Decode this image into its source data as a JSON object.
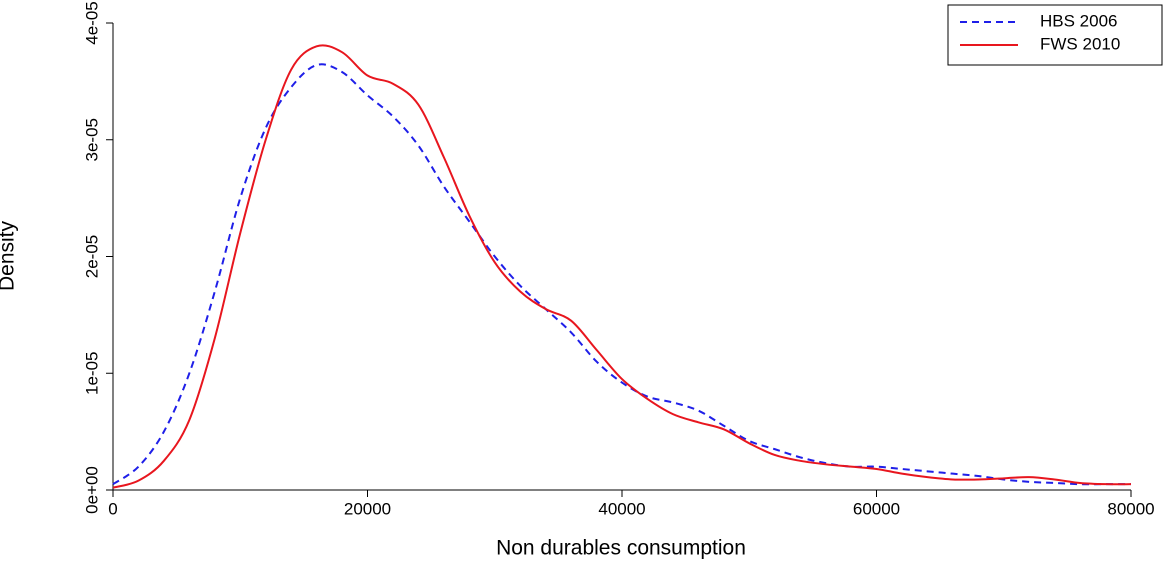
{
  "chart_data": {
    "type": "line",
    "x_label": "Non durables consumption",
    "y_label": "Density",
    "x": [
      0,
      2000,
      4000,
      6000,
      8000,
      10000,
      12000,
      14000,
      16000,
      18000,
      20000,
      22000,
      24000,
      26000,
      28000,
      30000,
      32000,
      34000,
      36000,
      38000,
      40000,
      42000,
      44000,
      46000,
      48000,
      50000,
      52000,
      54000,
      56000,
      58000,
      60000,
      62000,
      64000,
      66000,
      68000,
      70000,
      72000,
      74000,
      76000,
      78000,
      80000
    ],
    "series": [
      {
        "name": "HBS 2006",
        "color": "#1f1fe8",
        "dash": "dashed",
        "values": [
          5e-07,
          2e-06,
          5e-06,
          1e-05,
          1.7e-05,
          2.5e-05,
          3.1e-05,
          3.45e-05,
          3.64e-05,
          3.58e-05,
          3.38e-05,
          3.2e-05,
          2.95e-05,
          2.6e-05,
          2.3e-05,
          2e-05,
          1.75e-05,
          1.55e-05,
          1.35e-05,
          1.1e-05,
          9.2e-06,
          8e-06,
          7.5e-06,
          6.8e-06,
          5.5e-06,
          4.2e-06,
          3.5e-06,
          2.8e-06,
          2.3e-06,
          2e-06,
          2e-06,
          1.8e-06,
          1.6e-06,
          1.4e-06,
          1.2e-06,
          9e-07,
          7e-07,
          6e-07,
          5e-07,
          5e-07,
          5e-07
        ]
      },
      {
        "name": "FWS 2010",
        "color": "#e8161e",
        "dash": "solid",
        "values": [
          2e-07,
          8e-07,
          2.5e-06,
          6e-06,
          1.3e-05,
          2.2e-05,
          3e-05,
          3.6e-05,
          3.8e-05,
          3.75e-05,
          3.55e-05,
          3.48e-05,
          3.3e-05,
          2.85e-05,
          2.35e-05,
          1.95e-05,
          1.7e-05,
          1.55e-05,
          1.45e-05,
          1.2e-05,
          9.5e-06,
          7.8e-06,
          6.5e-06,
          5.8e-06,
          5.2e-06,
          4e-06,
          3e-06,
          2.5e-06,
          2.2e-06,
          2e-06,
          1.8e-06,
          1.4e-06,
          1.1e-06,
          9e-07,
          9e-07,
          1e-06,
          1.1e-06,
          9e-07,
          6e-07,
          5e-07,
          5e-07
        ]
      }
    ],
    "xlim": [
      0,
      80000
    ],
    "xticks": [
      0,
      20000,
      40000,
      60000,
      80000
    ],
    "ylim": [
      0,
      4e-05
    ],
    "yticks": [
      {
        "value": 0,
        "label": "0e+00"
      },
      {
        "value": 1e-05,
        "label": "1e-05"
      },
      {
        "value": 2e-05,
        "label": "2e-05"
      },
      {
        "value": 3e-05,
        "label": "3e-05"
      },
      {
        "value": 4e-05,
        "label": "4e-05"
      }
    ],
    "legend": "topright",
    "grid": false
  }
}
